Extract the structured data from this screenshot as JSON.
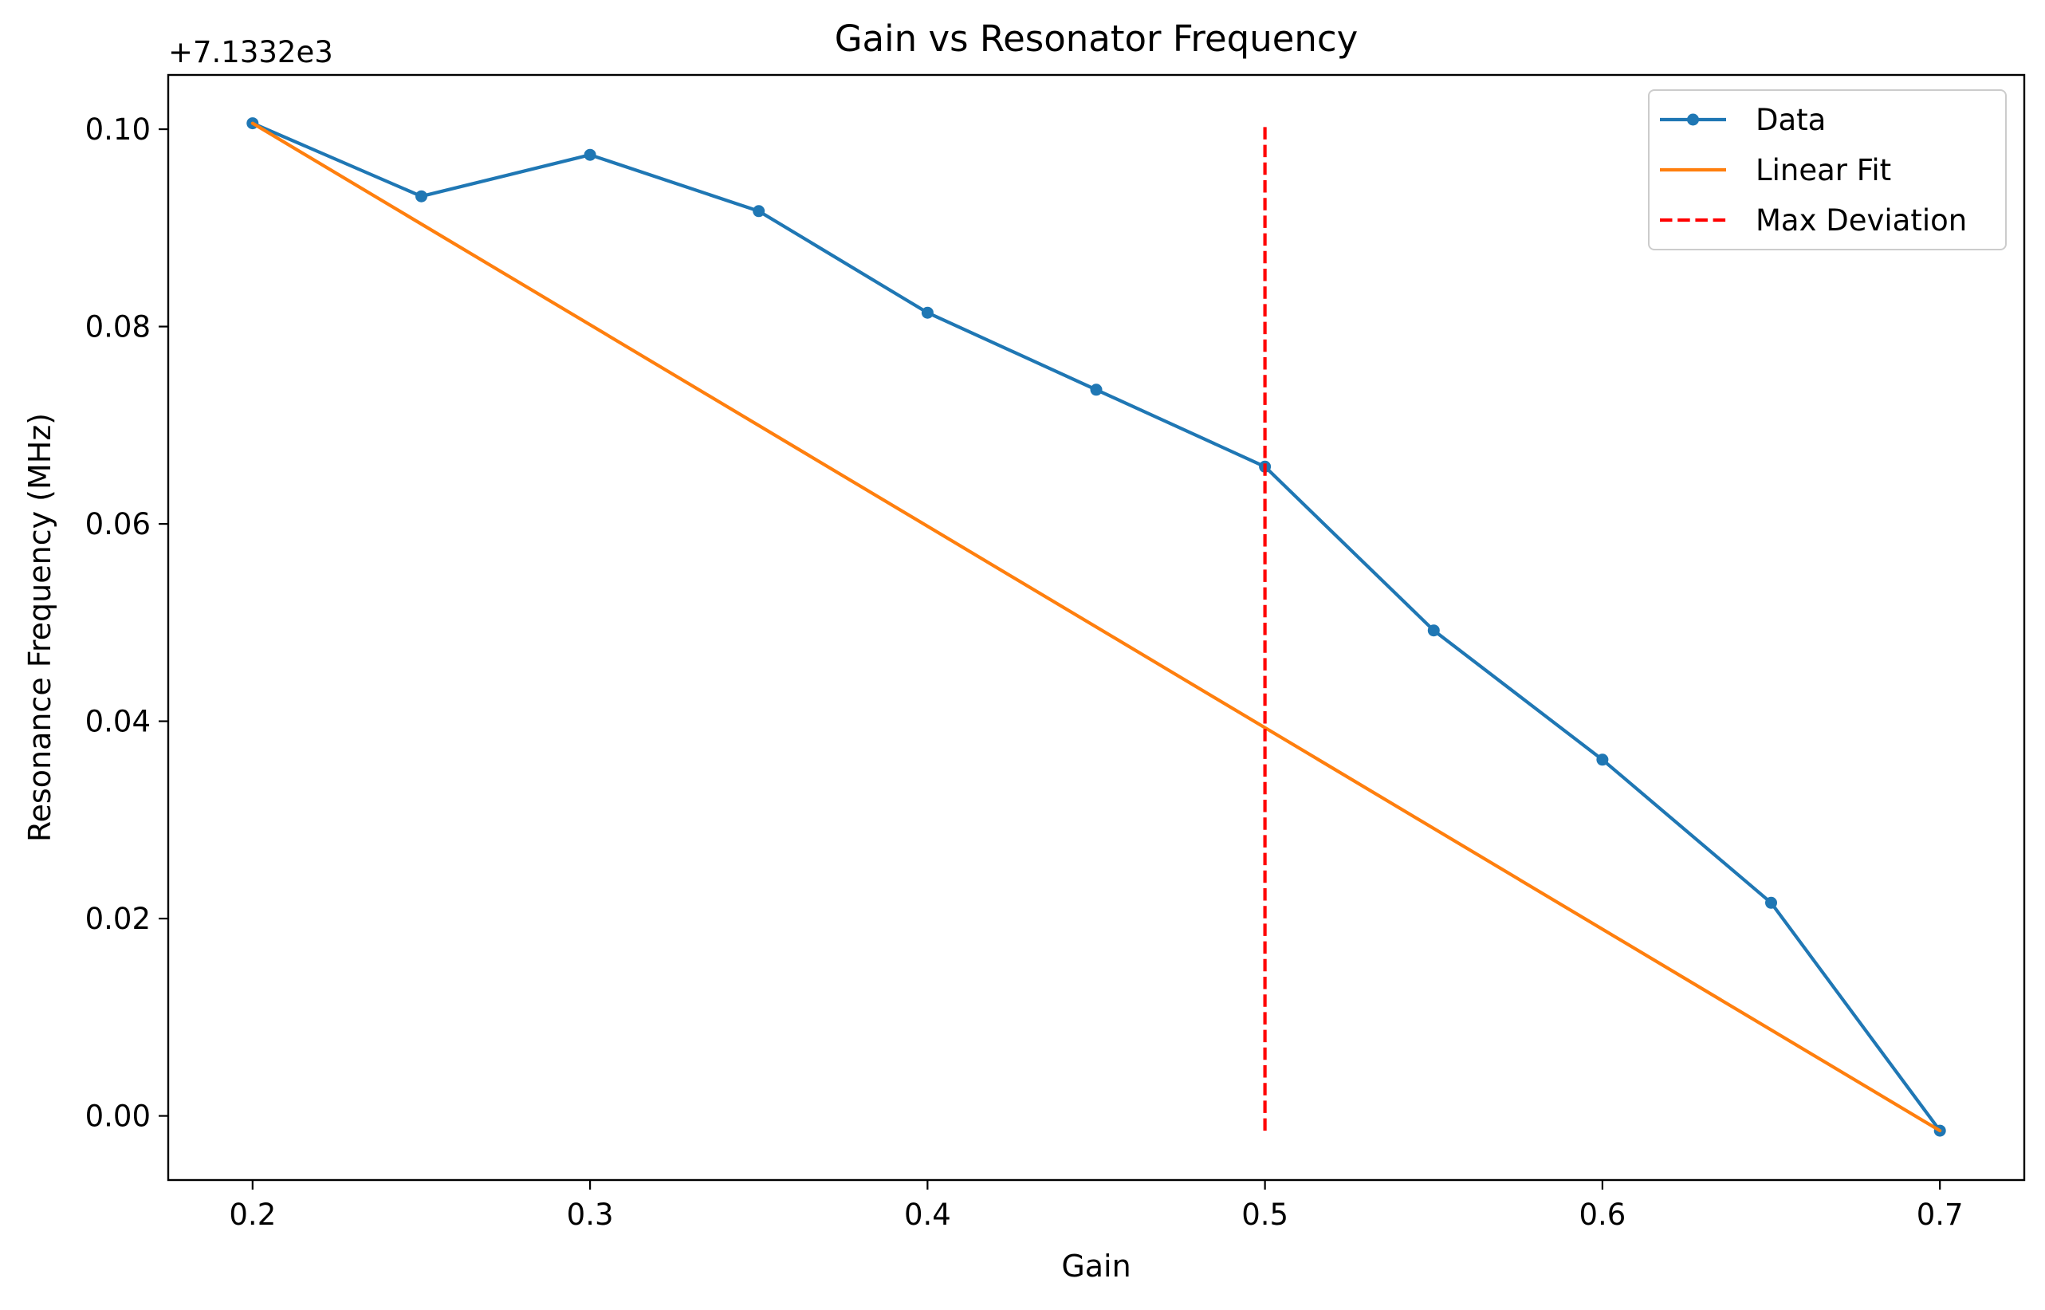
{
  "chart_data": {
    "type": "line",
    "title": "Gain vs Resonator Frequency",
    "xlabel": "Gain",
    "ylabel": "Resonance Frequency (MHz)",
    "offset_label": "+7.1332e3",
    "xlim": [
      0.175,
      0.725
    ],
    "ylim": [
      -0.0065,
      0.1055
    ],
    "x_ticks": [
      "0.2",
      "0.3",
      "0.4",
      "0.5",
      "0.6",
      "0.7"
    ],
    "y_ticks": [
      "0.00",
      "0.02",
      "0.04",
      "0.06",
      "0.08",
      "0.10"
    ],
    "grid": false,
    "legend_position": "top-right",
    "series": [
      {
        "name": "Data",
        "color": "#1f77b4",
        "style": "line-markers",
        "x": [
          0.2,
          0.25,
          0.3,
          0.35,
          0.4,
          0.45,
          0.5,
          0.55,
          0.6,
          0.65,
          0.7
        ],
        "y": [
          0.1006,
          0.0932,
          0.0974,
          0.0917,
          0.0814,
          0.0736,
          0.0658,
          0.0492,
          0.0361,
          0.0216,
          -0.0015
        ]
      },
      {
        "name": "Linear Fit",
        "color": "#ff7f0e",
        "style": "line",
        "x": [
          0.2,
          0.7
        ],
        "y": [
          0.1006,
          -0.0015
        ]
      },
      {
        "name": "Max Deviation",
        "color": "#ff0000",
        "style": "dashed",
        "x": [
          0.5,
          0.5
        ],
        "y": [
          -0.0015,
          0.1006
        ]
      }
    ]
  }
}
